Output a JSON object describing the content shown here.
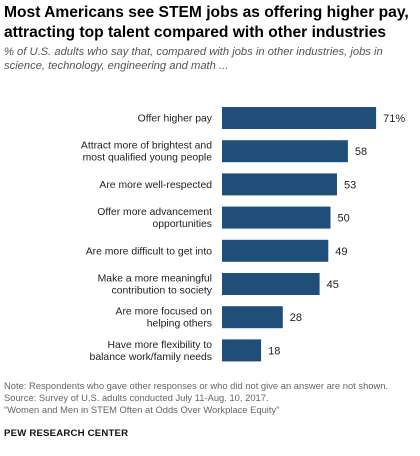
{
  "header": {
    "title": "Most Americans see STEM jobs as offering higher pay, attracting top talent compared with other industries",
    "subtitle": "% of U.S. adults who say that, compared with jobs in other industries, jobs in science, technology, engineering and math ..."
  },
  "chart_data": {
    "type": "bar",
    "orientation": "horizontal",
    "categories": [
      [
        "Offer higher pay"
      ],
      [
        "Attract more of brightest and",
        "most qualified young people"
      ],
      [
        "Are more well-respected"
      ],
      [
        "Offer more advancement",
        "opportunities"
      ],
      [
        "Are more difficult to get into"
      ],
      [
        "Make a more meaningful",
        "contribution to society"
      ],
      [
        "Are more focused on",
        "helping others"
      ],
      [
        "Have more flexibility to",
        "balance work/family needs"
      ]
    ],
    "values": [
      71,
      58,
      53,
      50,
      49,
      45,
      28,
      18
    ],
    "value_labels": [
      "71%",
      "58",
      "53",
      "50",
      "49",
      "45",
      "28",
      "18"
    ],
    "bar_color": "#1f4e79",
    "xlim": [
      0,
      100
    ],
    "grid": false,
    "legend": "none"
  },
  "footer": {
    "note": "Note: Respondents who gave other responses or who did not give an answer are not shown.",
    "source": "Source: Survey of U.S. adults conducted July 11-Aug. 10, 2017.",
    "report": "“Women and Men in STEM Often at Odds Over Workplace Equity”",
    "brand": "PEW RESEARCH CENTER"
  }
}
